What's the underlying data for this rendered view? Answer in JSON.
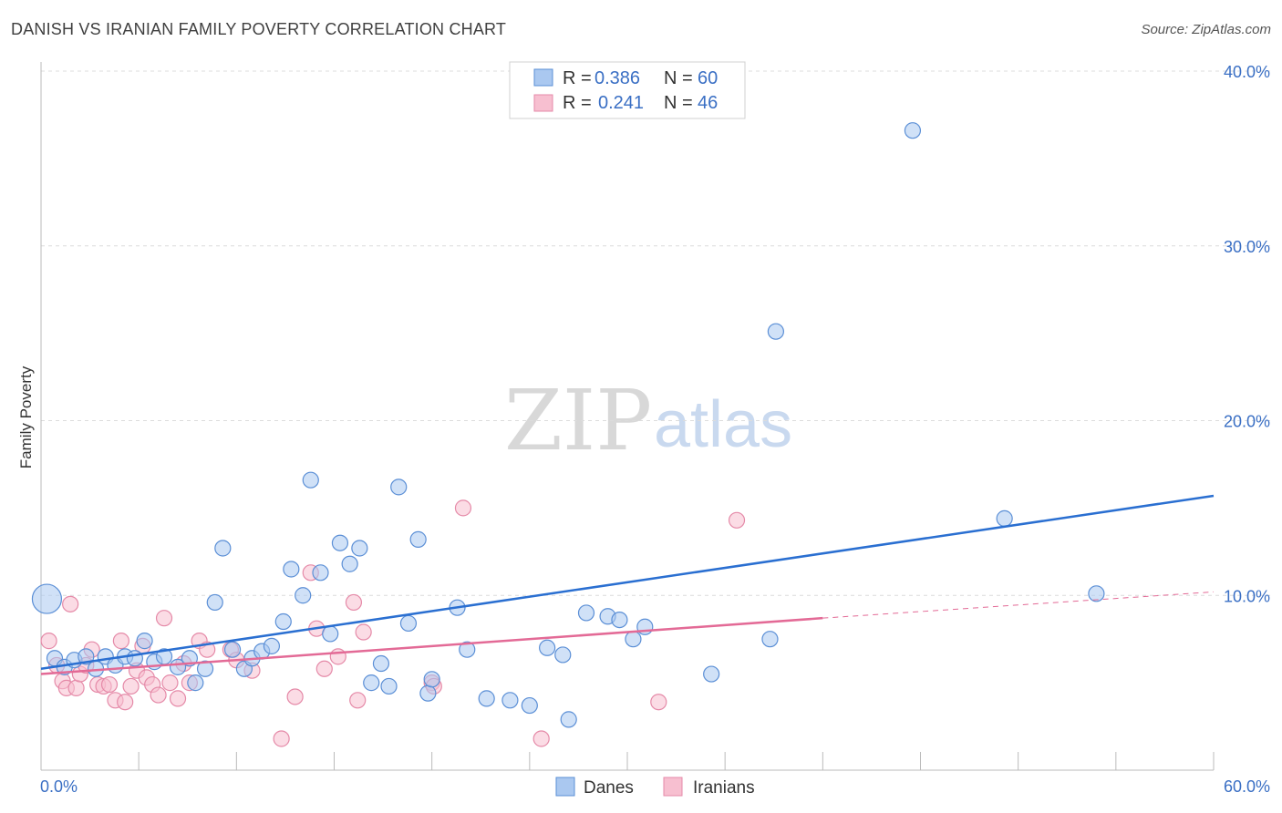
{
  "title": "DANISH VS IRANIAN FAMILY POVERTY CORRELATION CHART",
  "source": "Source: ZipAtlas.com",
  "watermark": {
    "left": "ZIP",
    "right": "atlas"
  },
  "legend": {
    "r_label": "R =",
    "n_label": "N =",
    "entries": [
      {
        "series": "Danes",
        "r": "0.386",
        "n": "60"
      },
      {
        "series": "Iranians",
        "r": "0.241",
        "n": "46"
      }
    ]
  },
  "colors": {
    "danes_fill": "#aac8f0",
    "danes_stroke": "#5b8fd6",
    "danes_line": "#2a6fd1",
    "iranians_fill": "#f7bfd0",
    "iranians_stroke": "#e58aa8",
    "iranians_line": "#e36a96",
    "grid": "#dcdcdc",
    "axis": "#bbbbbb"
  },
  "chart_data": {
    "type": "scatter",
    "title": "DANISH VS IRANIAN FAMILY POVERTY CORRELATION CHART",
    "xlabel": "",
    "ylabel": "Family Poverty",
    "xlim": [
      0,
      60
    ],
    "ylim": [
      0,
      40
    ],
    "x_tick_labels": [
      "0.0%",
      "60.0%"
    ],
    "y_ticks": [
      10,
      20,
      30,
      40
    ],
    "y_tick_labels": [
      "10.0%",
      "20.0%",
      "30.0%",
      "40.0%"
    ],
    "grid": "horizontal dashed",
    "series": [
      {
        "name": "Danes",
        "points": [
          [
            0.3,
            9.8,
            "large"
          ],
          [
            0.7,
            6.4
          ],
          [
            1.2,
            5.9
          ],
          [
            1.7,
            6.3
          ],
          [
            2.3,
            6.5
          ],
          [
            2.8,
            5.8
          ],
          [
            3.3,
            6.5
          ],
          [
            3.8,
            6.0
          ],
          [
            4.3,
            6.5
          ],
          [
            4.8,
            6.4
          ],
          [
            5.3,
            7.4
          ],
          [
            5.8,
            6.2
          ],
          [
            6.3,
            6.5
          ],
          [
            7.0,
            5.9
          ],
          [
            7.6,
            6.4
          ],
          [
            7.9,
            5.0
          ],
          [
            8.4,
            5.8
          ],
          [
            8.9,
            9.6
          ],
          [
            9.3,
            12.7
          ],
          [
            9.8,
            6.9
          ],
          [
            10.4,
            5.8
          ],
          [
            10.8,
            6.4
          ],
          [
            11.3,
            6.8
          ],
          [
            11.8,
            7.1
          ],
          [
            12.4,
            8.5
          ],
          [
            12.8,
            11.5
          ],
          [
            13.4,
            10.0
          ],
          [
            13.8,
            16.6
          ],
          [
            14.3,
            11.3
          ],
          [
            14.8,
            7.8
          ],
          [
            15.3,
            13.0
          ],
          [
            15.8,
            11.8
          ],
          [
            16.3,
            12.7
          ],
          [
            16.9,
            5.0
          ],
          [
            17.4,
            6.1
          ],
          [
            17.8,
            4.8
          ],
          [
            18.3,
            16.2
          ],
          [
            18.8,
            8.4
          ],
          [
            19.3,
            13.2
          ],
          [
            19.8,
            4.4
          ],
          [
            20.0,
            5.2
          ],
          [
            21.3,
            9.3
          ],
          [
            21.8,
            6.9
          ],
          [
            22.8,
            4.1
          ],
          [
            24.0,
            4.0
          ],
          [
            25.0,
            3.7
          ],
          [
            25.9,
            7.0
          ],
          [
            26.7,
            6.6
          ],
          [
            27.0,
            2.9
          ],
          [
            27.9,
            9.0
          ],
          [
            29.0,
            8.8
          ],
          [
            29.6,
            8.6
          ],
          [
            30.3,
            7.5
          ],
          [
            30.9,
            8.2
          ],
          [
            34.3,
            5.5
          ],
          [
            37.3,
            7.5
          ],
          [
            37.6,
            25.1
          ],
          [
            44.6,
            36.6
          ],
          [
            49.3,
            14.4
          ],
          [
            54.0,
            10.1
          ]
        ]
      },
      {
        "name": "Iranians",
        "points": [
          [
            0.4,
            7.4
          ],
          [
            0.8,
            6.0
          ],
          [
            1.1,
            5.1
          ],
          [
            1.3,
            4.7
          ],
          [
            1.5,
            9.5
          ],
          [
            1.8,
            4.7
          ],
          [
            2.0,
            5.5
          ],
          [
            2.3,
            6.0
          ],
          [
            2.6,
            6.9
          ],
          [
            2.9,
            4.9
          ],
          [
            3.2,
            4.8
          ],
          [
            3.5,
            4.9
          ],
          [
            3.8,
            4.0
          ],
          [
            4.1,
            7.4
          ],
          [
            4.3,
            3.9
          ],
          [
            4.6,
            4.8
          ],
          [
            4.9,
            5.7
          ],
          [
            5.2,
            7.1
          ],
          [
            5.4,
            5.3
          ],
          [
            5.7,
            4.9
          ],
          [
            6.0,
            4.3
          ],
          [
            6.3,
            8.7
          ],
          [
            6.6,
            5.0
          ],
          [
            7.0,
            4.1
          ],
          [
            7.3,
            6.1
          ],
          [
            7.6,
            5.0
          ],
          [
            8.1,
            7.4
          ],
          [
            8.5,
            6.9
          ],
          [
            9.7,
            6.9
          ],
          [
            10.0,
            6.3
          ],
          [
            10.8,
            5.7
          ],
          [
            12.3,
            1.8
          ],
          [
            13.0,
            4.2
          ],
          [
            13.8,
            11.3
          ],
          [
            14.1,
            8.1
          ],
          [
            14.5,
            5.8
          ],
          [
            15.2,
            6.5
          ],
          [
            16.2,
            4.0
          ],
          [
            16.5,
            7.9
          ],
          [
            20.0,
            5.0
          ],
          [
            21.6,
            15.0
          ],
          [
            25.6,
            1.8
          ],
          [
            31.6,
            3.9
          ],
          [
            35.6,
            14.3
          ],
          [
            16.0,
            9.6
          ],
          [
            20.1,
            4.8
          ]
        ]
      }
    ],
    "trendlines": [
      {
        "series": "Danes",
        "x": [
          0,
          60
        ],
        "y": [
          5.8,
          15.7
        ],
        "style": "solid"
      },
      {
        "series": "Iranians",
        "x": [
          0,
          40
        ],
        "y": [
          5.5,
          8.7
        ],
        "style": "solid"
      },
      {
        "series": "Iranians",
        "x": [
          40,
          60
        ],
        "y": [
          8.7,
          10.2
        ],
        "style": "dashed"
      }
    ]
  },
  "bottom_legend": [
    "Danes",
    "Iranians"
  ]
}
